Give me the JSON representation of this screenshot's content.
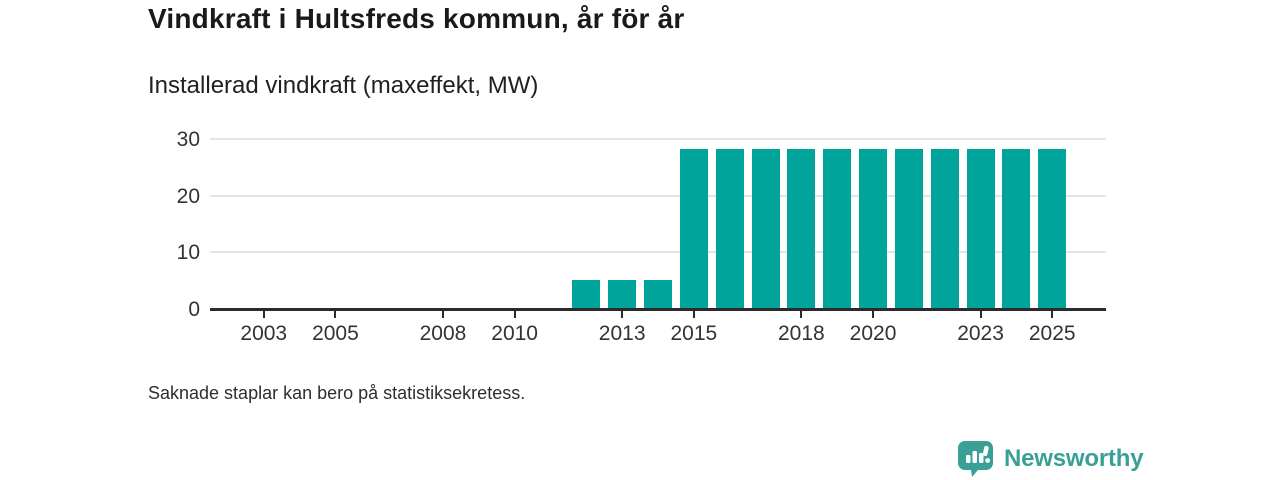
{
  "header": {
    "title": "Vindkraft i Hultsfreds kommun, år för år",
    "subtitle": "Installerad vindkraft (maxeffekt, MW)"
  },
  "chart_data": {
    "type": "bar",
    "title": "Vindkraft i Hultsfreds kommun, år för år",
    "ylabel": "Installerad vindkraft (maxeffekt, MW)",
    "unit": "MW",
    "categories": [
      2002,
      2003,
      2004,
      2005,
      2006,
      2007,
      2008,
      2009,
      2010,
      2011,
      2012,
      2013,
      2014,
      2015,
      2016,
      2017,
      2018,
      2019,
      2020,
      2021,
      2022,
      2023,
      2024,
      2025
    ],
    "values": [
      null,
      null,
      null,
      null,
      null,
      null,
      null,
      null,
      null,
      null,
      5.1,
      5.1,
      5.1,
      28.3,
      28.3,
      28.3,
      28.3,
      28.3,
      28.3,
      28.3,
      28.3,
      28.3,
      28.3,
      28.3
    ],
    "x_tick_labels": [
      2003,
      2005,
      2008,
      2010,
      2013,
      2015,
      2018,
      2020,
      2023,
      2025
    ],
    "y_ticks": [
      0,
      10,
      20,
      30
    ],
    "ylim": [
      0,
      30
    ],
    "xlim": [
      2002,
      2026
    ],
    "grid": "horizontal",
    "legend": "none",
    "bar_color": "#00a49b",
    "axis_color": "#2b2b2b",
    "gridline_color": "#e4e4e4",
    "missing_note": "Saknade staplar kan bero på statistiksekretess."
  },
  "footnote": {
    "text": "Saknade staplar kan bero på statistiksekretess."
  },
  "branding": {
    "name": "Newsworthy",
    "color": "#3aa096",
    "icon": "bar-chart-speech-bubble-icon"
  }
}
